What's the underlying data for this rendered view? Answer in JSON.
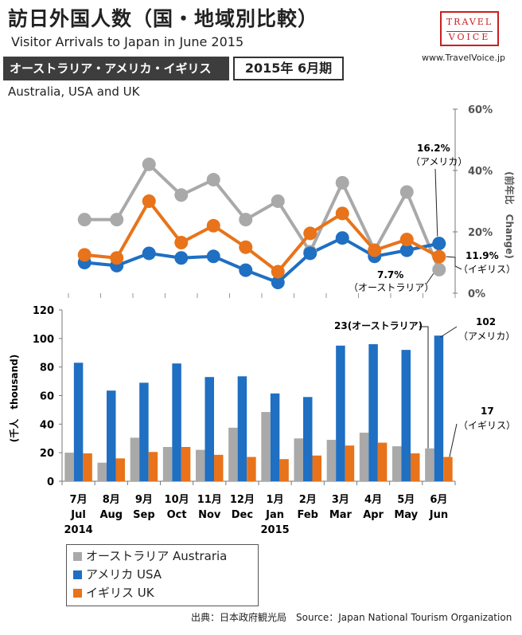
{
  "header": {
    "title": "訪日外国人数（国・地域別比較）",
    "subtitle": "Visitor Arrivals to Japan in June 2015",
    "banner": "オーストラリア・アメリカ・イギリス",
    "period": "2015年 6月期",
    "countries_en": "Australia, USA and UK",
    "logo_top": "TRAVEL",
    "logo_bottom": "VOICE",
    "url": "www.TravelVoice.jp"
  },
  "colors": {
    "australia": "#a9a9a9",
    "usa": "#1f6fc2",
    "uk": "#e8731a"
  },
  "chart_data": [
    {
      "type": "line",
      "title": "前年比 Change",
      "ylabel": "(前年比　Change)",
      "ylim": [
        0,
        60
      ],
      "yticks": [
        "0%",
        "20%",
        "40%",
        "60%"
      ],
      "categories": [
        "2014-07",
        "2014-08",
        "2014-09",
        "2014-10",
        "2014-11",
        "2014-12",
        "2015-01",
        "2015-02",
        "2015-03",
        "2015-04",
        "2015-05",
        "2015-06"
      ],
      "series": [
        {
          "name": "オーストラリア",
          "key": "australia",
          "values": [
            24,
            24,
            42,
            32,
            37,
            24,
            30,
            13.5,
            36,
            14,
            33,
            7.7
          ]
        },
        {
          "name": "アメリカ",
          "key": "usa",
          "values": [
            10,
            9,
            13,
            11.5,
            12,
            7.5,
            3.5,
            13,
            18,
            12,
            14,
            16.2
          ]
        },
        {
          "name": "イギリス",
          "key": "uk",
          "values": [
            12.5,
            11.5,
            30,
            16.5,
            22,
            15,
            7,
            19.5,
            26,
            14,
            17.5,
            11.9
          ]
        }
      ],
      "annotations": {
        "usa_value": "16.2%",
        "usa_name": "（アメリカ）",
        "uk_value": "11.9%",
        "uk_name": "（イギリス）",
        "au_value": "7.7%",
        "au_name": "（オーストラリア）"
      }
    },
    {
      "type": "bar",
      "title": "訪日外国人数",
      "ylabel": "(千人　thousand)",
      "ylim": [
        0,
        120
      ],
      "yticks": [
        "0",
        "20",
        "40",
        "60",
        "80",
        "100",
        "120"
      ],
      "categories": [
        "7月",
        "8月",
        "9月",
        "10月",
        "11月",
        "12月",
        "1月",
        "2月",
        "3月",
        "4月",
        "5月",
        "6月"
      ],
      "categories_en": [
        "Jul",
        "Aug",
        "Sep",
        "Oct",
        "Nov",
        "Dec",
        "Jan",
        "Feb",
        "Mar",
        "Apr",
        "May",
        "Jun"
      ],
      "year_labels": {
        "2014": "2014",
        "2015": "2015"
      },
      "series": [
        {
          "name": "オーストラリア",
          "key": "australia",
          "values": [
            20,
            13,
            30.5,
            24,
            22,
            37.5,
            48.5,
            30,
            29,
            34,
            24.5,
            23
          ]
        },
        {
          "name": "アメリカ",
          "key": "usa",
          "values": [
            83,
            63.5,
            69,
            82.5,
            73,
            73.5,
            61.5,
            59,
            95,
            96,
            92,
            102
          ]
        },
        {
          "name": "イギリス",
          "key": "uk",
          "values": [
            19.5,
            16,
            20.5,
            24,
            18.5,
            17,
            15.5,
            18,
            25,
            27,
            19.5,
            17
          ]
        }
      ],
      "annotations": {
        "au_label": "23(オーストラリア)",
        "usa_value": "102",
        "usa_name": "（アメリカ）",
        "uk_value": "17",
        "uk_name": "（イギリス）"
      }
    }
  ],
  "legend": [
    {
      "label": "オーストラリア Austraria",
      "key": "australia"
    },
    {
      "label": "アメリカ USA",
      "key": "usa"
    },
    {
      "label": "イギリス UK",
      "key": "uk"
    }
  ],
  "source": "出典：日本政府観光局　Source：Japan  National Tourism  Organization"
}
